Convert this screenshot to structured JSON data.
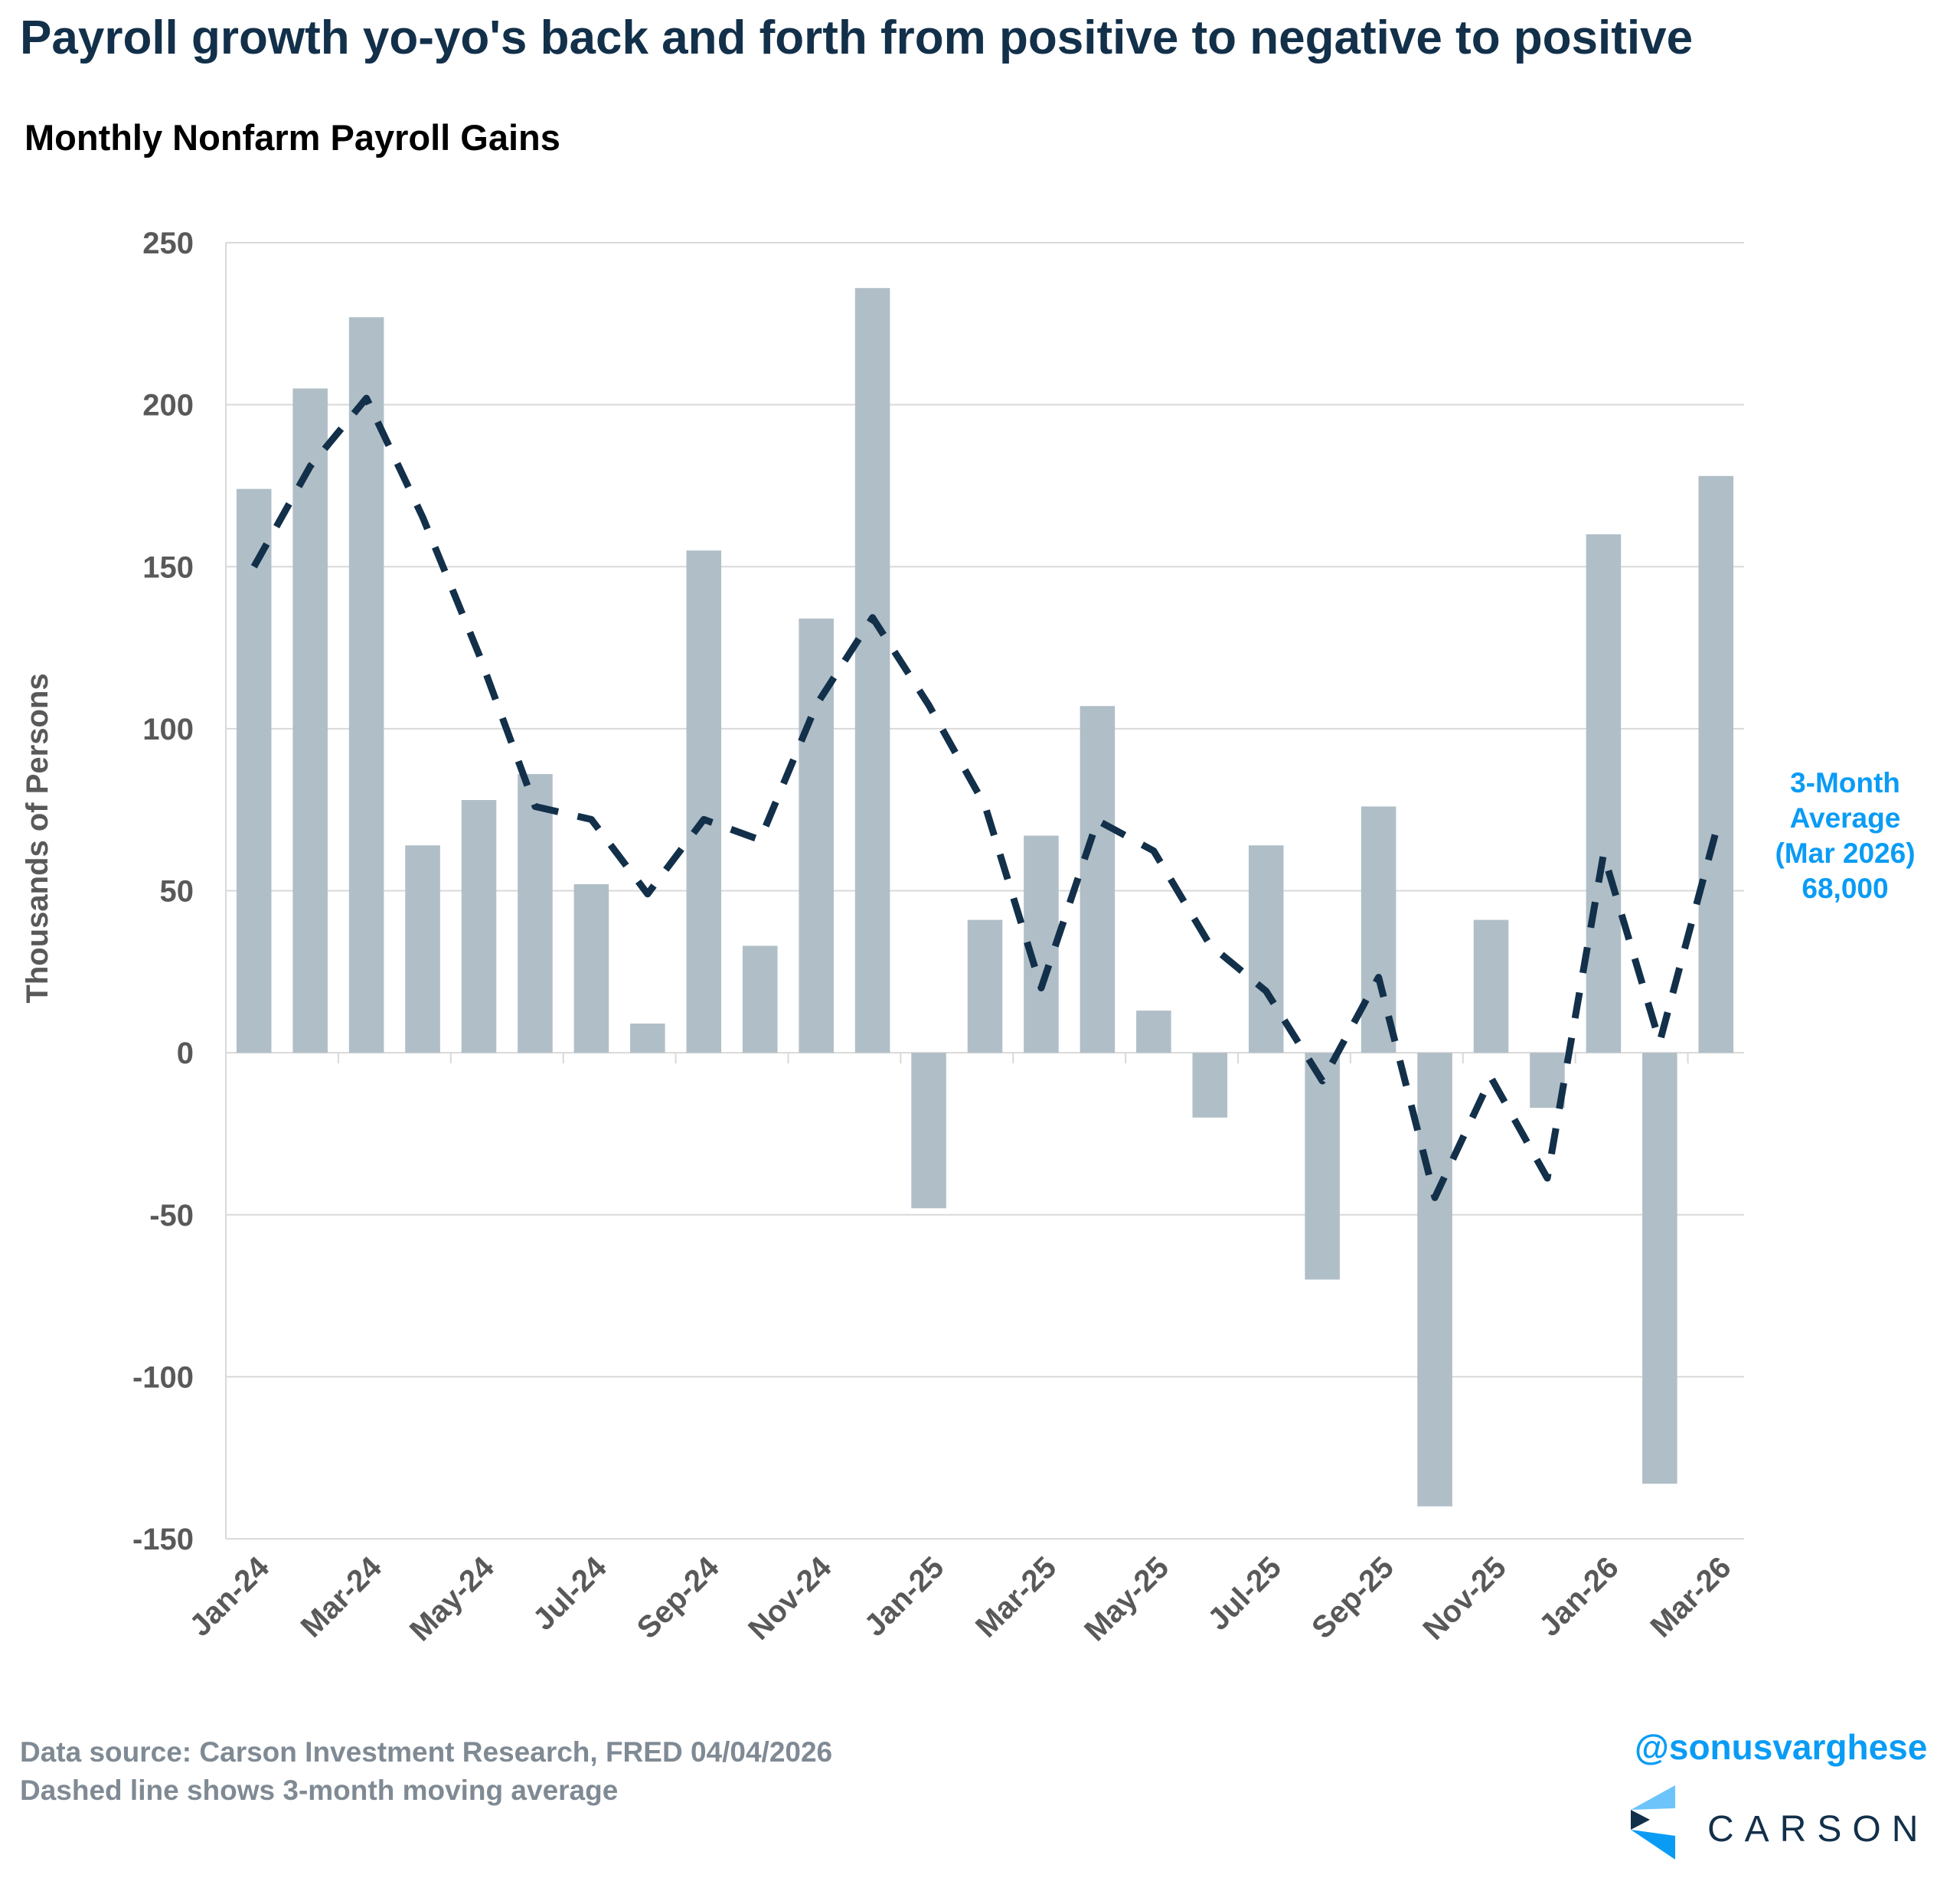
{
  "header": {
    "title": "Payroll growth yo-yo's back and forth from positive to negative to positive",
    "subtitle": "Monthly Nonfarm Payroll Gains"
  },
  "annotation": {
    "line1": "3-Month",
    "line2": "Average",
    "line3": "(Mar 2026)",
    "line4": "68,000"
  },
  "footer": {
    "source": "Data source: Carson Investment Research, FRED   04/04/2026",
    "note": "Dashed line shows 3-month moving average",
    "handle": "@sonusvarghese",
    "logo_text": "CARSON"
  },
  "colors": {
    "bar": "#b0bec7",
    "line": "#13304a",
    "accent": "#0a9cf5"
  },
  "chart_data": {
    "type": "bar",
    "title": "Monthly Nonfarm Payroll Gains",
    "xlabel": "",
    "ylabel": "Thousands of Persons",
    "ylim": [
      -150,
      250
    ],
    "yticks": [
      250,
      200,
      150,
      100,
      50,
      0,
      -50,
      -100,
      -150
    ],
    "grid": true,
    "categories": [
      "Jan-24",
      "Feb-24",
      "Mar-24",
      "Apr-24",
      "May-24",
      "Jun-24",
      "Jul-24",
      "Aug-24",
      "Sep-24",
      "Oct-24",
      "Nov-24",
      "Dec-24",
      "Jan-25",
      "Feb-25",
      "Mar-25",
      "Apr-25",
      "May-25",
      "Jun-25",
      "Jul-25",
      "Aug-25",
      "Sep-25",
      "Oct-25",
      "Nov-25",
      "Dec-25",
      "Jan-26",
      "Feb-26",
      "Mar-26"
    ],
    "xtick_labels": [
      "Jan-24",
      "Mar-24",
      "May-24",
      "Jul-24",
      "Sep-24",
      "Nov-24",
      "Jan-25",
      "Mar-25",
      "May-25",
      "Jul-25",
      "Sep-25",
      "Nov-25",
      "Jan-26",
      "Mar-26"
    ],
    "series": [
      {
        "name": "Monthly Nonfarm Payroll Gains",
        "type": "bar",
        "values": [
          174,
          205,
          227,
          64,
          78,
          86,
          52,
          9,
          155,
          33,
          134,
          236,
          -48,
          41,
          67,
          107,
          13,
          -20,
          64,
          -70,
          76,
          -140,
          41,
          -17,
          160,
          -133,
          178
        ]
      },
      {
        "name": "3-month moving average",
        "type": "line",
        "style": "dashed",
        "values": [
          150,
          181,
          202,
          165.3,
          123,
          76,
          72,
          49,
          72,
          65.7,
          107.3,
          134.3,
          107.3,
          76.3,
          20,
          71.7,
          62.3,
          33.3,
          19,
          -8.7,
          23.3,
          -44.7,
          -7.7,
          -38.7,
          61.3,
          3.3,
          68.3
        ]
      }
    ]
  }
}
